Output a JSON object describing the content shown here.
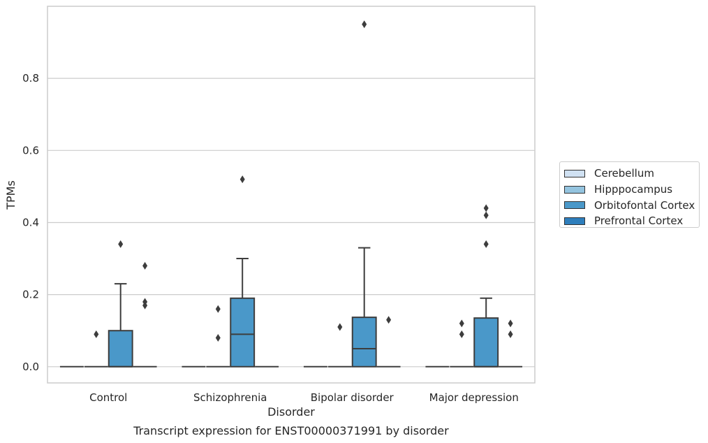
{
  "chart_data": {
    "type": "box",
    "title": "Transcript expression for ENST00000371991 by disorder",
    "xlabel": "Disorder",
    "ylabel": "TPMs",
    "categories": [
      "Control",
      "Schizophrenia",
      "Bipolar disorder",
      "Major depression"
    ],
    "yticks": [
      "0.0",
      "0.2",
      "0.4",
      "0.6",
      "0.8"
    ],
    "ylim": [
      -0.045,
      1.0
    ],
    "grid": "horizontal",
    "legend_placement": "right",
    "series": [
      {
        "name": "Cerebellum",
        "color": "#d0e1f2",
        "boxes": [
          {
            "q1": 0,
            "median": 0,
            "q3": 0,
            "whislo": 0,
            "whishi": 0,
            "fliers": []
          },
          {
            "q1": 0,
            "median": 0,
            "q3": 0,
            "whislo": 0,
            "whishi": 0,
            "fliers": []
          },
          {
            "q1": 0,
            "median": 0,
            "q3": 0,
            "whislo": 0,
            "whishi": 0,
            "fliers": []
          },
          {
            "q1": 0,
            "median": 0,
            "q3": 0,
            "whislo": 0,
            "whishi": 0,
            "fliers": []
          }
        ]
      },
      {
        "name": "Hipppocampus",
        "color": "#94c4df",
        "boxes": [
          {
            "q1": 0,
            "median": 0,
            "q3": 0,
            "whislo": 0,
            "whishi": 0,
            "fliers": [
              0.09
            ]
          },
          {
            "q1": 0,
            "median": 0,
            "q3": 0,
            "whislo": 0,
            "whishi": 0,
            "fliers": [
              0.08,
              0.16
            ]
          },
          {
            "q1": 0,
            "median": 0,
            "q3": 0,
            "whislo": 0,
            "whishi": 0,
            "fliers": [
              0.11
            ]
          },
          {
            "q1": 0,
            "median": 0,
            "q3": 0,
            "whislo": 0,
            "whishi": 0,
            "fliers": [
              0.09,
              0.12
            ]
          }
        ]
      },
      {
        "name": "Orbitofontal Cortex",
        "color": "#4a98c9",
        "boxes": [
          {
            "q1": 0,
            "median": 0,
            "q3": 0.1,
            "whislo": 0,
            "whishi": 0.23,
            "fliers": [
              0.34
            ]
          },
          {
            "q1": 0,
            "median": 0.09,
            "q3": 0.19,
            "whislo": 0,
            "whishi": 0.3,
            "fliers": [
              0.52
            ]
          },
          {
            "q1": 0,
            "median": 0.05,
            "q3": 0.137,
            "whislo": 0,
            "whishi": 0.33,
            "fliers": [
              0.95
            ]
          },
          {
            "q1": 0,
            "median": 0,
            "q3": 0.135,
            "whislo": 0,
            "whishi": 0.19,
            "fliers": [
              0.34,
              0.42,
              0.44
            ]
          }
        ]
      },
      {
        "name": "Prefrontal Cortex",
        "color": "#2e7ebc",
        "boxes": [
          {
            "q1": 0,
            "median": 0,
            "q3": 0,
            "whislo": 0,
            "whishi": 0,
            "fliers": [
              0.17,
              0.18,
              0.28
            ]
          },
          {
            "q1": 0,
            "median": 0,
            "q3": 0,
            "whislo": 0,
            "whishi": 0,
            "fliers": []
          },
          {
            "q1": 0,
            "median": 0,
            "q3": 0,
            "whislo": 0,
            "whishi": 0,
            "fliers": [
              0.13
            ]
          },
          {
            "q1": 0,
            "median": 0,
            "q3": 0,
            "whislo": 0,
            "whishi": 0,
            "fliers": [
              0.09,
              0.12
            ]
          }
        ]
      }
    ]
  }
}
